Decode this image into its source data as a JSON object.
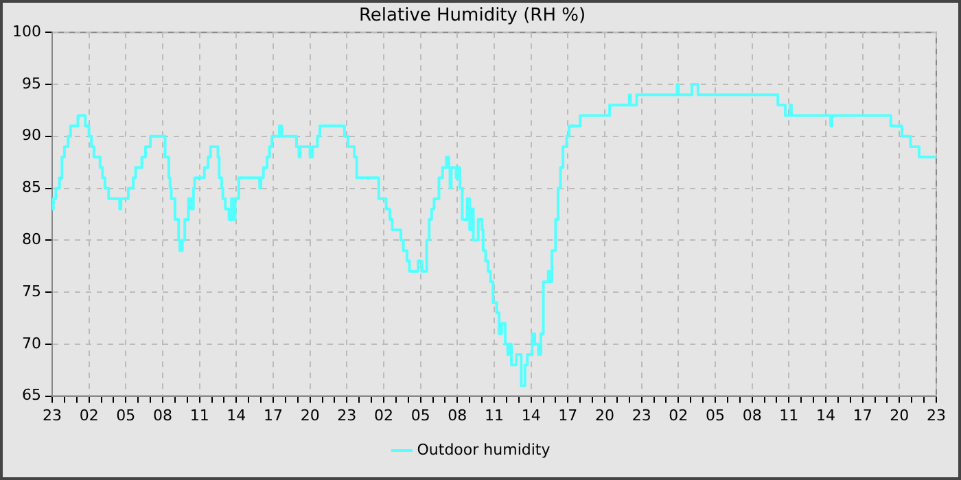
{
  "chart_data": {
    "type": "step",
    "title": "Relative Humidity (RH %)",
    "x": [
      "--01-01T23:00",
      "--01-01T23:06",
      "--01-01T23:18",
      "--01-01T23:36",
      "--01-01T23:48",
      "--01-02T00:00",
      "--01-02T00:18",
      "--01-02T00:30",
      "--01-02T01:06",
      "--01-02T01:42",
      "--01-02T02:00",
      "--01-02T02:12",
      "--01-02T02:24",
      "--01-02T02:54",
      "--01-02T03:06",
      "--01-02T03:18",
      "--01-02T03:36",
      "--01-02T04:06",
      "--01-02T04:30",
      "--01-02T04:36",
      "--01-02T05:12",
      "--01-02T05:36",
      "--01-02T05:48",
      "--01-02T06:18",
      "--01-02T06:36",
      "--01-02T07:00",
      "--01-02T08:12",
      "--01-02T08:30",
      "--01-02T08:36",
      "--01-02T08:42",
      "--01-02T09:00",
      "--01-02T09:18",
      "--01-02T09:24",
      "--01-02T09:36",
      "--01-02T09:48",
      "--01-02T10:06",
      "--01-02T10:18",
      "--01-02T10:30",
      "--01-02T10:36",
      "--01-02T11:24",
      "--01-02T11:42",
      "--01-02T11:54",
      "--01-02T12:30",
      "--01-02T12:36",
      "--01-02T12:48",
      "--01-02T12:54",
      "--01-02T13:06",
      "--01-02T13:24",
      "--01-02T13:36",
      "--01-02T13:42",
      "--01-02T13:54",
      "--01-02T14:12",
      "--01-02T14:30",
      "--01-02T15:54",
      "--01-02T16:00",
      "--01-02T16:12",
      "--01-02T16:30",
      "--01-02T16:42",
      "--01-02T16:54",
      "--01-02T17:30",
      "--01-02T17:42",
      "--01-02T17:54",
      "--01-02T18:54",
      "--01-02T19:06",
      "--01-02T19:12",
      "--01-02T20:00",
      "--01-02T20:12",
      "--01-02T20:36",
      "--01-02T20:48",
      "--01-02T22:48",
      "--01-02T23:06",
      "--01-02T23:36",
      "--01-02T23:48",
      "--01-03T00:18",
      "--01-03T01:36",
      "--01-03T02:12",
      "--01-03T02:30",
      "--01-03T02:42",
      "--01-03T03:24",
      "--01-03T03:36",
      "--01-03T03:54",
      "--01-03T04:06",
      "--01-03T04:18",
      "--01-03T04:48",
      "--01-03T05:06",
      "--01-03T05:30",
      "--01-03T05:42",
      "--01-03T05:54",
      "--01-03T06:06",
      "--01-03T06:30",
      "--01-03T06:48",
      "--01-03T07:06",
      "--01-03T07:18",
      "--01-03T07:24",
      "--01-03T07:30",
      "--01-03T07:54",
      "--01-03T08:06",
      "--01-03T08:12",
      "--01-03T08:24",
      "--01-03T08:48",
      "--01-03T09:00",
      "--01-03T09:12",
      "--01-03T09:18",
      "--01-03T09:42",
      "--01-03T10:00",
      "--01-03T10:06",
      "--01-03T10:18",
      "--01-03T10:30",
      "--01-03T10:42",
      "--01-03T10:54",
      "--01-03T11:12",
      "--01-03T11:24",
      "--01-03T11:36",
      "--01-03T11:54",
      "--01-03T12:06",
      "--01-03T12:12",
      "--01-03T12:24",
      "--01-03T12:48",
      "--01-03T13:12",
      "--01-03T13:30",
      "--01-03T13:42",
      "--01-03T14:06",
      "--01-03T14:18",
      "--01-03T14:36",
      "--01-03T14:48",
      "--01-03T15:00",
      "--01-03T15:24",
      "--01-03T15:30",
      "--01-03T15:36",
      "--01-03T15:42",
      "--01-03T16:00",
      "--01-03T16:12",
      "--01-03T16:24",
      "--01-03T16:36",
      "--01-03T16:54",
      "--01-03T17:06",
      "--01-03T18:00",
      "--01-03T20:24",
      "--01-03T22:00",
      "--01-03T22:06",
      "--01-03T22:36",
      "--01-04T01:54",
      "--01-04T02:00",
      "--01-04T03:06",
      "--01-04T03:36",
      "--01-04T10:06",
      "--01-04T10:42",
      "--01-04T11:06",
      "--01-04T11:12",
      "--01-04T14:24",
      "--01-04T14:30",
      "--01-04T19:18",
      "--01-04T20:12",
      "--01-04T20:54",
      "--01-04T21:36",
      "--01-04T23:00"
    ],
    "series": [
      {
        "name": "Outdoor humidity",
        "color": "#55ffff",
        "values": [
          83,
          84,
          85,
          86,
          88,
          89,
          90,
          91,
          92,
          91,
          90,
          89,
          88,
          87,
          86,
          85,
          84,
          84,
          83,
          84,
          85,
          86,
          87,
          88,
          89,
          90,
          88,
          86,
          85,
          84,
          82,
          80,
          79,
          80,
          82,
          84,
          83,
          85,
          86,
          87,
          88,
          89,
          88,
          86,
          85,
          84,
          83,
          82,
          84,
          82,
          84,
          86,
          86,
          85,
          86,
          87,
          88,
          89,
          90,
          91,
          90,
          90,
          89,
          88,
          89,
          88,
          89,
          90,
          91,
          90,
          89,
          88,
          86,
          86,
          84,
          83,
          82,
          81,
          80,
          79,
          78,
          77,
          77,
          78,
          77,
          80,
          82,
          83,
          84,
          86,
          87,
          88,
          87,
          85,
          87,
          86,
          87,
          85,
          82,
          84,
          81,
          83,
          80,
          82,
          81,
          79,
          78,
          77,
          76,
          74,
          73,
          71,
          72,
          70,
          69,
          70,
          68,
          69,
          66,
          68,
          69,
          71,
          70,
          69,
          71,
          76,
          77,
          76,
          76,
          79,
          82,
          85,
          87,
          89,
          90,
          91,
          92,
          93,
          94,
          93,
          94,
          95,
          94,
          95,
          94,
          93,
          92,
          93,
          92,
          91,
          92,
          91,
          90,
          89,
          88,
          88
        ]
      }
    ],
    "xlim": [
      "--01-01T23:00",
      "--01-04T23:00"
    ],
    "xticks": [
      {
        "value": "--01-01T23:00",
        "label": "23"
      },
      {
        "value": "--01-02T00:00",
        "label": null
      },
      {
        "value": "--01-02T01:00",
        "label": null
      },
      {
        "value": "--01-02T02:00",
        "label": "02"
      },
      {
        "value": "--01-02T03:00",
        "label": null
      },
      {
        "value": "--01-02T04:00",
        "label": null
      },
      {
        "value": "--01-02T05:00",
        "label": "05"
      },
      {
        "value": "--01-02T06:00",
        "label": null
      },
      {
        "value": "--01-02T07:00",
        "label": null
      },
      {
        "value": "--01-02T08:00",
        "label": "08"
      },
      {
        "value": "--01-02T09:00",
        "label": null
      },
      {
        "value": "--01-02T10:00",
        "label": null
      },
      {
        "value": "--01-02T11:00",
        "label": "11"
      },
      {
        "value": "--01-02T12:00",
        "label": null
      },
      {
        "value": "--01-02T13:00",
        "label": null
      },
      {
        "value": "--01-02T14:00",
        "label": "14"
      },
      {
        "value": "--01-02T15:00",
        "label": null
      },
      {
        "value": "--01-02T16:00",
        "label": null
      },
      {
        "value": "--01-02T17:00",
        "label": "17"
      },
      {
        "value": "--01-02T18:00",
        "label": null
      },
      {
        "value": "--01-02T19:00",
        "label": null
      },
      {
        "value": "--01-02T20:00",
        "label": "20"
      },
      {
        "value": "--01-02T21:00",
        "label": null
      },
      {
        "value": "--01-02T22:00",
        "label": null
      },
      {
        "value": "--01-02T23:00",
        "label": "23"
      },
      {
        "value": "--01-03T00:00",
        "label": null
      },
      {
        "value": "--01-03T01:00",
        "label": null
      },
      {
        "value": "--01-03T02:00",
        "label": "02"
      },
      {
        "value": "--01-03T03:00",
        "label": null
      },
      {
        "value": "--01-03T04:00",
        "label": null
      },
      {
        "value": "--01-03T05:00",
        "label": "05"
      },
      {
        "value": "--01-03T06:00",
        "label": null
      },
      {
        "value": "--01-03T07:00",
        "label": null
      },
      {
        "value": "--01-03T08:00",
        "label": "08"
      },
      {
        "value": "--01-03T09:00",
        "label": null
      },
      {
        "value": "--01-03T10:00",
        "label": null
      },
      {
        "value": "--01-03T11:00",
        "label": "11"
      },
      {
        "value": "--01-03T12:00",
        "label": null
      },
      {
        "value": "--01-03T13:00",
        "label": null
      },
      {
        "value": "--01-03T14:00",
        "label": "14"
      },
      {
        "value": "--01-03T15:00",
        "label": null
      },
      {
        "value": "--01-03T16:00",
        "label": null
      },
      {
        "value": "--01-03T17:00",
        "label": "17"
      },
      {
        "value": "--01-03T18:00",
        "label": null
      },
      {
        "value": "--01-03T19:00",
        "label": null
      },
      {
        "value": "--01-03T20:00",
        "label": "20"
      },
      {
        "value": "--01-03T21:00",
        "label": null
      },
      {
        "value": "--01-03T22:00",
        "label": null
      },
      {
        "value": "--01-03T23:00",
        "label": "23"
      },
      {
        "value": "--01-04T00:00",
        "label": null
      },
      {
        "value": "--01-04T01:00",
        "label": null
      },
      {
        "value": "--01-04T02:00",
        "label": "02"
      },
      {
        "value": "--01-04T03:00",
        "label": null
      },
      {
        "value": "--01-04T04:00",
        "label": null
      },
      {
        "value": "--01-04T05:00",
        "label": "05"
      },
      {
        "value": "--01-04T06:00",
        "label": null
      },
      {
        "value": "--01-04T07:00",
        "label": null
      },
      {
        "value": "--01-04T08:00",
        "label": "08"
      },
      {
        "value": "--01-04T09:00",
        "label": null
      },
      {
        "value": "--01-04T10:00",
        "label": null
      },
      {
        "value": "--01-04T11:00",
        "label": "11"
      },
      {
        "value": "--01-04T12:00",
        "label": null
      },
      {
        "value": "--01-04T13:00",
        "label": null
      },
      {
        "value": "--01-04T14:00",
        "label": "14"
      },
      {
        "value": "--01-04T15:00",
        "label": null
      },
      {
        "value": "--01-04T16:00",
        "label": null
      },
      {
        "value": "--01-04T17:00",
        "label": "17"
      },
      {
        "value": "--01-04T18:00",
        "label": null
      },
      {
        "value": "--01-04T19:00",
        "label": null
      },
      {
        "value": "--01-04T20:00",
        "label": "20"
      },
      {
        "value": "--01-04T21:00",
        "label": null
      },
      {
        "value": "--01-04T22:00",
        "label": null
      },
      {
        "value": "--01-04T23:00",
        "label": "23"
      }
    ],
    "ylim": [
      65,
      100
    ],
    "yticks": [
      65,
      70,
      75,
      80,
      85,
      90,
      95,
      100
    ],
    "grid": true,
    "legend": "bottom",
    "marker": "none",
    "line_style": "solid"
  }
}
